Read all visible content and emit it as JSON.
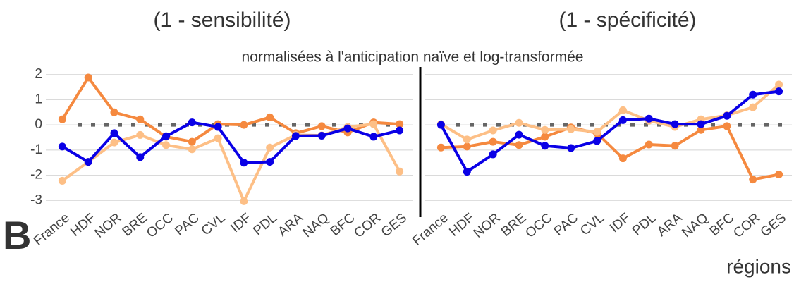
{
  "subtitle": "normalisées à l'anticipation naïve et log-transformée",
  "panel_label": "B",
  "xlabel": "régions",
  "chart_data": [
    {
      "type": "line",
      "title": "(1 - sensibilité)",
      "categories": [
        "France",
        "HDF",
        "NOR",
        "BRE",
        "OCC",
        "PAC",
        "CVL",
        "IDF",
        "PDL",
        "ARA",
        "NAQ",
        "BFC",
        "COR",
        "GES"
      ],
      "series": [
        {
          "color": "#f5893f",
          "values": [
            0.22,
            1.88,
            0.5,
            0.22,
            -0.47,
            -0.67,
            0.03,
            0,
            0.3,
            -0.33,
            -0.05,
            -0.3,
            0.1,
            0.03
          ]
        },
        {
          "color": "#fdbf86",
          "values": [
            -2.22,
            -1.47,
            -0.7,
            -0.4,
            -0.8,
            -0.97,
            -0.53,
            -3.03,
            -0.9,
            -0.4,
            -0.42,
            -0.08,
            0.03,
            -1.85
          ]
        },
        {
          "color": "#0a00e6",
          "values": [
            -0.86,
            -1.47,
            -0.33,
            -1.28,
            -0.45,
            0.1,
            -0.08,
            -1.5,
            -1.47,
            -0.44,
            -0.43,
            -0.14,
            -0.47,
            -0.22
          ]
        }
      ],
      "ylim": [
        -3.3,
        2.3
      ],
      "yticks": [
        -3,
        -2,
        -1,
        0,
        1,
        2
      ],
      "grid": true,
      "show_ytick_labels": true,
      "reference_line": 0
    },
    {
      "type": "line",
      "title": "(1 - spécificité)",
      "categories": [
        "France",
        "HDF",
        "NOR",
        "BRE",
        "OCC",
        "PAC",
        "CVL",
        "IDF",
        "PDL",
        "ARA",
        "NAQ",
        "BFC",
        "COR",
        "GES"
      ],
      "series": [
        {
          "color": "#f5893f",
          "values": [
            -0.9,
            -0.86,
            -0.67,
            -0.8,
            -0.47,
            -0.1,
            -0.33,
            -1.33,
            -0.78,
            -0.83,
            -0.2,
            -0.05,
            -2.17,
            -1.97
          ]
        },
        {
          "color": "#fdbf86",
          "values": [
            0.03,
            -0.58,
            -0.22,
            0.08,
            -0.2,
            -0.17,
            -0.28,
            0.58,
            0.17,
            -0.08,
            0.22,
            0.38,
            0.7,
            1.6
          ]
        },
        {
          "color": "#0a00e6",
          "values": [
            0,
            -1.86,
            -1.17,
            -0.39,
            -0.83,
            -0.92,
            -0.64,
            0.19,
            0.25,
            0.03,
            0.03,
            0.36,
            1.2,
            1.33
          ]
        }
      ],
      "ylim": [
        -3.3,
        2.3
      ],
      "yticks": [
        -3,
        -2,
        -1,
        0,
        1,
        2
      ],
      "grid": true,
      "show_ytick_labels": false,
      "reference_line": 0
    }
  ]
}
